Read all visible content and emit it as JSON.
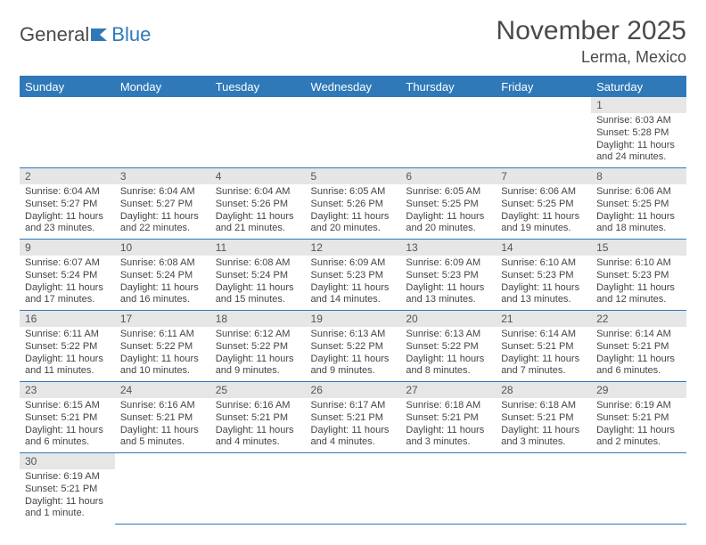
{
  "logo": {
    "text1": "General",
    "text2": "Blue"
  },
  "header": {
    "title": "November 2025",
    "location": "Lerma, Mexico"
  },
  "colors": {
    "header_bg": "#2f79b9",
    "header_text": "#ffffff",
    "daynum_bg": "#e6e6e6",
    "border": "#2f79b9",
    "text": "#444444"
  },
  "weekdays": [
    "Sunday",
    "Monday",
    "Tuesday",
    "Wednesday",
    "Thursday",
    "Friday",
    "Saturday"
  ],
  "weeks": [
    [
      null,
      null,
      null,
      null,
      null,
      null,
      {
        "n": "1",
        "sunrise": "Sunrise: 6:03 AM",
        "sunset": "Sunset: 5:28 PM",
        "daylight": "Daylight: 11 hours and 24 minutes."
      }
    ],
    [
      {
        "n": "2",
        "sunrise": "Sunrise: 6:04 AM",
        "sunset": "Sunset: 5:27 PM",
        "daylight": "Daylight: 11 hours and 23 minutes."
      },
      {
        "n": "3",
        "sunrise": "Sunrise: 6:04 AM",
        "sunset": "Sunset: 5:27 PM",
        "daylight": "Daylight: 11 hours and 22 minutes."
      },
      {
        "n": "4",
        "sunrise": "Sunrise: 6:04 AM",
        "sunset": "Sunset: 5:26 PM",
        "daylight": "Daylight: 11 hours and 21 minutes."
      },
      {
        "n": "5",
        "sunrise": "Sunrise: 6:05 AM",
        "sunset": "Sunset: 5:26 PM",
        "daylight": "Daylight: 11 hours and 20 minutes."
      },
      {
        "n": "6",
        "sunrise": "Sunrise: 6:05 AM",
        "sunset": "Sunset: 5:25 PM",
        "daylight": "Daylight: 11 hours and 20 minutes."
      },
      {
        "n": "7",
        "sunrise": "Sunrise: 6:06 AM",
        "sunset": "Sunset: 5:25 PM",
        "daylight": "Daylight: 11 hours and 19 minutes."
      },
      {
        "n": "8",
        "sunrise": "Sunrise: 6:06 AM",
        "sunset": "Sunset: 5:25 PM",
        "daylight": "Daylight: 11 hours and 18 minutes."
      }
    ],
    [
      {
        "n": "9",
        "sunrise": "Sunrise: 6:07 AM",
        "sunset": "Sunset: 5:24 PM",
        "daylight": "Daylight: 11 hours and 17 minutes."
      },
      {
        "n": "10",
        "sunrise": "Sunrise: 6:08 AM",
        "sunset": "Sunset: 5:24 PM",
        "daylight": "Daylight: 11 hours and 16 minutes."
      },
      {
        "n": "11",
        "sunrise": "Sunrise: 6:08 AM",
        "sunset": "Sunset: 5:24 PM",
        "daylight": "Daylight: 11 hours and 15 minutes."
      },
      {
        "n": "12",
        "sunrise": "Sunrise: 6:09 AM",
        "sunset": "Sunset: 5:23 PM",
        "daylight": "Daylight: 11 hours and 14 minutes."
      },
      {
        "n": "13",
        "sunrise": "Sunrise: 6:09 AM",
        "sunset": "Sunset: 5:23 PM",
        "daylight": "Daylight: 11 hours and 13 minutes."
      },
      {
        "n": "14",
        "sunrise": "Sunrise: 6:10 AM",
        "sunset": "Sunset: 5:23 PM",
        "daylight": "Daylight: 11 hours and 13 minutes."
      },
      {
        "n": "15",
        "sunrise": "Sunrise: 6:10 AM",
        "sunset": "Sunset: 5:23 PM",
        "daylight": "Daylight: 11 hours and 12 minutes."
      }
    ],
    [
      {
        "n": "16",
        "sunrise": "Sunrise: 6:11 AM",
        "sunset": "Sunset: 5:22 PM",
        "daylight": "Daylight: 11 hours and 11 minutes."
      },
      {
        "n": "17",
        "sunrise": "Sunrise: 6:11 AM",
        "sunset": "Sunset: 5:22 PM",
        "daylight": "Daylight: 11 hours and 10 minutes."
      },
      {
        "n": "18",
        "sunrise": "Sunrise: 6:12 AM",
        "sunset": "Sunset: 5:22 PM",
        "daylight": "Daylight: 11 hours and 9 minutes."
      },
      {
        "n": "19",
        "sunrise": "Sunrise: 6:13 AM",
        "sunset": "Sunset: 5:22 PM",
        "daylight": "Daylight: 11 hours and 9 minutes."
      },
      {
        "n": "20",
        "sunrise": "Sunrise: 6:13 AM",
        "sunset": "Sunset: 5:22 PM",
        "daylight": "Daylight: 11 hours and 8 minutes."
      },
      {
        "n": "21",
        "sunrise": "Sunrise: 6:14 AM",
        "sunset": "Sunset: 5:21 PM",
        "daylight": "Daylight: 11 hours and 7 minutes."
      },
      {
        "n": "22",
        "sunrise": "Sunrise: 6:14 AM",
        "sunset": "Sunset: 5:21 PM",
        "daylight": "Daylight: 11 hours and 6 minutes."
      }
    ],
    [
      {
        "n": "23",
        "sunrise": "Sunrise: 6:15 AM",
        "sunset": "Sunset: 5:21 PM",
        "daylight": "Daylight: 11 hours and 6 minutes."
      },
      {
        "n": "24",
        "sunrise": "Sunrise: 6:16 AM",
        "sunset": "Sunset: 5:21 PM",
        "daylight": "Daylight: 11 hours and 5 minutes."
      },
      {
        "n": "25",
        "sunrise": "Sunrise: 6:16 AM",
        "sunset": "Sunset: 5:21 PM",
        "daylight": "Daylight: 11 hours and 4 minutes."
      },
      {
        "n": "26",
        "sunrise": "Sunrise: 6:17 AM",
        "sunset": "Sunset: 5:21 PM",
        "daylight": "Daylight: 11 hours and 4 minutes."
      },
      {
        "n": "27",
        "sunrise": "Sunrise: 6:18 AM",
        "sunset": "Sunset: 5:21 PM",
        "daylight": "Daylight: 11 hours and 3 minutes."
      },
      {
        "n": "28",
        "sunrise": "Sunrise: 6:18 AM",
        "sunset": "Sunset: 5:21 PM",
        "daylight": "Daylight: 11 hours and 3 minutes."
      },
      {
        "n": "29",
        "sunrise": "Sunrise: 6:19 AM",
        "sunset": "Sunset: 5:21 PM",
        "daylight": "Daylight: 11 hours and 2 minutes."
      }
    ],
    [
      {
        "n": "30",
        "sunrise": "Sunrise: 6:19 AM",
        "sunset": "Sunset: 5:21 PM",
        "daylight": "Daylight: 11 hours and 1 minute."
      },
      null,
      null,
      null,
      null,
      null,
      null
    ]
  ]
}
